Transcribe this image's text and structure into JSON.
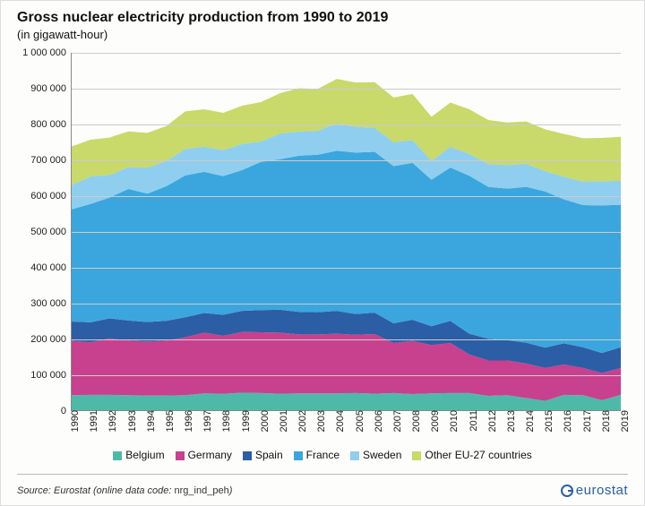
{
  "title": "Gross nuclear electricity production from 1990 to 2019",
  "subtitle": "(in gigawatt-hour)",
  "chart": {
    "type": "stacked-area",
    "years": [
      1990,
      1991,
      1992,
      1993,
      1994,
      1995,
      1996,
      1997,
      1998,
      1999,
      2000,
      2001,
      2002,
      2003,
      2004,
      2005,
      2006,
      2007,
      2008,
      2009,
      2010,
      2011,
      2012,
      2013,
      2014,
      2015,
      2016,
      2017,
      2018,
      2019
    ],
    "ylim": [
      0,
      1000000
    ],
    "yticks": [
      0,
      100000,
      200000,
      300000,
      400000,
      500000,
      600000,
      700000,
      800000,
      900000,
      1000000
    ],
    "ytick_labels": [
      "0",
      "100 000",
      "200 000",
      "300 000",
      "400 000",
      "500 000",
      "600 000",
      "700 000",
      "800 000",
      "900 000",
      "1 000 000"
    ],
    "series": [
      {
        "name": "Belgium",
        "color": "#4fb9a8",
        "values": [
          42000,
          43000,
          43000,
          42000,
          41000,
          41000,
          42000,
          47000,
          46000,
          49000,
          48000,
          46000,
          47000,
          47000,
          47000,
          48000,
          46000,
          48000,
          45000,
          47000,
          48000,
          48000,
          40000,
          42000,
          34000,
          26000,
          43000,
          42000,
          28000,
          43000
        ]
      },
      {
        "name": "Germany",
        "color": "#c7418f",
        "values": [
          152000,
          147000,
          158000,
          153000,
          151000,
          154000,
          162000,
          170000,
          162000,
          170000,
          170000,
          171000,
          165000,
          165000,
          167000,
          163000,
          167000,
          140000,
          149000,
          135000,
          140000,
          108000,
          99000,
          97000,
          97000,
          92000,
          85000,
          76000,
          76000,
          75000
        ]
      },
      {
        "name": "Spain",
        "color": "#2b5ea5",
        "values": [
          54000,
          56000,
          56000,
          56000,
          55000,
          55000,
          56000,
          55000,
          59000,
          59000,
          62000,
          64000,
          63000,
          62000,
          64000,
          58000,
          60000,
          55000,
          59000,
          53000,
          62000,
          58000,
          61000,
          57000,
          58000,
          57000,
          59000,
          58000,
          56000,
          58000
        ]
      },
      {
        "name": "France",
        "color": "#3ba6dd",
        "values": [
          314000,
          331000,
          338000,
          368000,
          359000,
          377000,
          397000,
          395000,
          388000,
          394000,
          415000,
          421000,
          437000,
          441000,
          448000,
          452000,
          450000,
          440000,
          439000,
          410000,
          429000,
          442000,
          425000,
          424000,
          436000,
          437000,
          403000,
          398000,
          413000,
          399000
        ]
      },
      {
        "name": "Sweden",
        "color": "#8fceee",
        "values": [
          68000,
          77000,
          63000,
          61000,
          73000,
          70000,
          74000,
          70000,
          73000,
          73000,
          57000,
          72000,
          68000,
          67000,
          77000,
          72000,
          67000,
          67000,
          64000,
          52000,
          58000,
          61000,
          64000,
          66000,
          65000,
          57000,
          63000,
          66000,
          68000,
          67000
        ]
      },
      {
        "name": "Other EU-27 countries",
        "color": "#c9d96a",
        "values": [
          108000,
          103000,
          105000,
          100000,
          97000,
          98000,
          105000,
          105000,
          104000,
          107000,
          110000,
          113000,
          121000,
          117000,
          124000,
          124000,
          128000,
          125000,
          129000,
          124000,
          124000,
          125000,
          123000,
          119000,
          118000,
          117000,
          120000,
          121000,
          121000,
          123000
        ]
      }
    ],
    "background": "#fdfdfb",
    "grid_color": "#cccccc",
    "axis_color": "#888888",
    "tick_fontsize": 11
  },
  "legend_labels": [
    "Belgium",
    "Germany",
    "Spain",
    "France",
    "Sweden",
    "Other EU-27 countries"
  ],
  "source_prefix": "Source:",
  "source_text": "Eurostat (online data code: ",
  "source_code": "nrg_ind_peh",
  "source_suffix": ")",
  "logo_text": "eurostat"
}
